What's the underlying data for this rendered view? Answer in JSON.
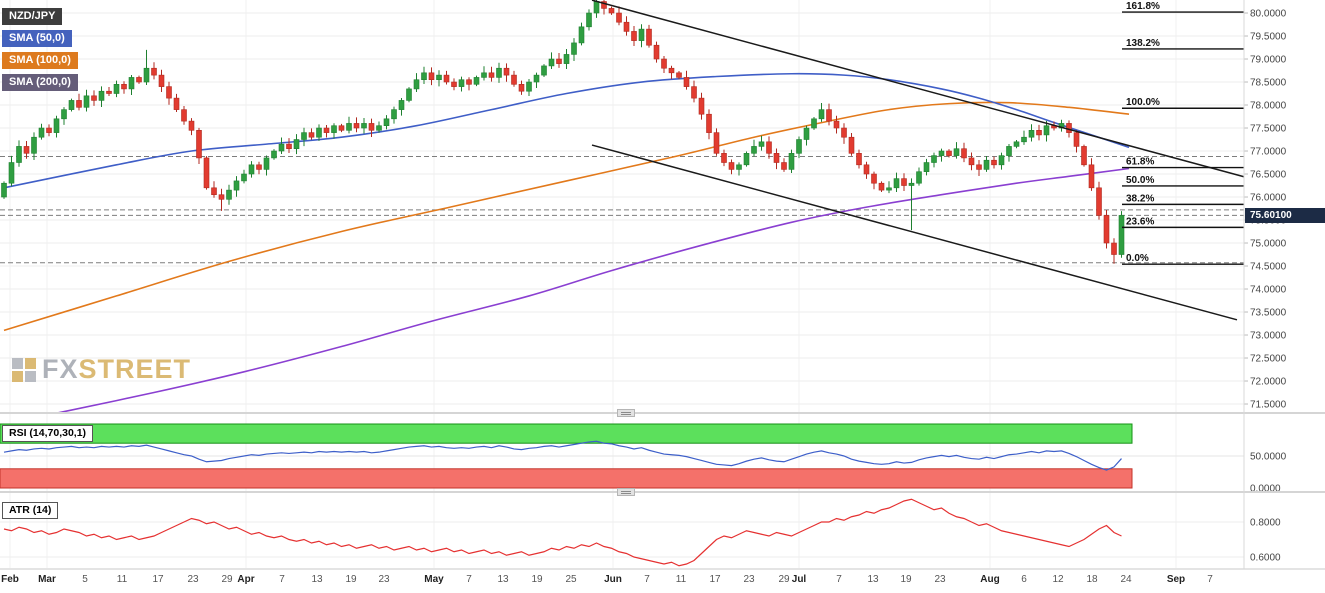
{
  "legend": {
    "symbol": "NZD/JPY",
    "sma50": "SMA (50,0)",
    "sma100": "SMA (100,0)",
    "sma200": "SMA (200,0)"
  },
  "watermark": {
    "fx": "FX",
    "street": "STREET"
  },
  "price_axis": {
    "labels": [
      "80.0000",
      "79.5000",
      "79.0000",
      "78.5000",
      "78.0000",
      "77.5000",
      "77.0000",
      "76.5000",
      "76.0000",
      "75.5000",
      "75.0000",
      "74.5000",
      "74.0000",
      "73.5000",
      "73.0000",
      "72.5000",
      "72.0000",
      "71.5000"
    ],
    "badge": "75.60100"
  },
  "colors": {
    "symbol_badge": "#3d3d3d",
    "sma50_badge": "#4462bd",
    "sma100_badge": "#dd7a1e",
    "sma200_badge": "#655d79",
    "sma50": "#3f5ec7",
    "sma100": "#e2791b",
    "sma200": "#8a3fd1",
    "candle_up": "#2f9e41",
    "candle_down": "#e23b30",
    "rsi_line": "#3d5fc9",
    "rsi_upper_band": "#5ce05c",
    "rsi_lower_band": "#f4716a",
    "atr_line": "#e53131",
    "last_price_bg": "#1c2b45"
  },
  "chart_data": {
    "type": "candlestick",
    "symbol": "NZD/JPY",
    "last_price": 75.601,
    "price_scale": {
      "min_label": 71.5,
      "max_label": 80.0,
      "step": 0.5
    },
    "candles": {
      "first_open": 76.0,
      "closes": [
        76.3,
        76.75,
        77.1,
        76.95,
        77.3,
        77.5,
        77.4,
        77.7,
        77.9,
        78.1,
        77.95,
        78.2,
        78.1,
        78.3,
        78.25,
        78.45,
        78.35,
        78.6,
        78.5,
        78.8,
        78.65,
        78.4,
        78.15,
        77.9,
        77.65,
        77.45,
        76.85,
        76.2,
        76.05,
        75.95,
        76.15,
        76.35,
        76.5,
        76.7,
        76.6,
        76.85,
        77.0,
        77.15,
        77.05,
        77.25,
        77.4,
        77.3,
        77.5,
        77.4,
        77.55,
        77.45,
        77.6,
        77.5,
        77.6,
        77.45,
        77.55,
        77.7,
        77.9,
        78.1,
        78.35,
        78.55,
        78.7,
        78.55,
        78.65,
        78.5,
        78.4,
        78.55,
        78.45,
        78.6,
        78.7,
        78.6,
        78.8,
        78.65,
        78.45,
        78.3,
        78.5,
        78.65,
        78.85,
        79.0,
        78.9,
        79.1,
        79.35,
        79.7,
        80.0,
        80.25,
        80.1,
        80.0,
        79.8,
        79.6,
        79.4,
        79.65,
        79.3,
        79.0,
        78.8,
        78.7,
        78.6,
        78.4,
        78.15,
        77.8,
        77.4,
        76.95,
        76.75,
        76.6,
        76.7,
        76.95,
        77.1,
        77.2,
        76.95,
        76.75,
        76.6,
        76.95,
        77.25,
        77.5,
        77.7,
        77.9,
        77.65,
        77.5,
        77.3,
        76.95,
        76.7,
        76.5,
        76.3,
        76.15,
        76.2,
        76.4,
        76.25,
        76.3,
        76.55,
        76.75,
        76.9,
        77.0,
        76.9,
        77.05,
        76.85,
        76.7,
        76.6,
        76.8,
        76.7,
        76.9,
        77.1,
        77.2,
        77.3,
        77.45,
        77.35,
        77.55,
        77.5,
        77.6,
        77.4,
        77.1,
        76.7,
        76.2,
        75.6,
        75.0,
        74.75,
        75.6
      ],
      "wick_overrides": {
        "19": {
          "h": 79.2
        },
        "29": {
          "l": 75.7
        },
        "79": {
          "h": 80.45
        },
        "121": {
          "l": 75.28
        },
        "148": {
          "l": 74.55
        },
        "149": {
          "l": 74.68
        }
      }
    },
    "overlays": {
      "sma50": {
        "name": "SMA (50,0)",
        "points": [
          [
            0,
            76.2
          ],
          [
            15,
            76.7
          ],
          [
            25,
            77.0
          ],
          [
            35,
            77.15
          ],
          [
            45,
            77.3
          ],
          [
            55,
            77.55
          ],
          [
            65,
            77.9
          ],
          [
            75,
            78.25
          ],
          [
            85,
            78.5
          ],
          [
            95,
            78.62
          ],
          [
            105,
            78.68
          ],
          [
            112,
            78.65
          ],
          [
            118,
            78.55
          ],
          [
            125,
            78.35
          ],
          [
            130,
            78.15
          ],
          [
            135,
            77.9
          ],
          [
            140,
            77.62
          ],
          [
            145,
            77.35
          ],
          [
            150,
            77.08
          ]
        ]
      },
      "sma100": {
        "name": "SMA (100,0)",
        "points": [
          [
            0,
            73.1
          ],
          [
            15,
            73.85
          ],
          [
            30,
            74.6
          ],
          [
            45,
            75.25
          ],
          [
            60,
            75.8
          ],
          [
            75,
            76.35
          ],
          [
            90,
            76.9
          ],
          [
            100,
            77.3
          ],
          [
            110,
            77.65
          ],
          [
            118,
            77.9
          ],
          [
            126,
            78.03
          ],
          [
            134,
            78.05
          ],
          [
            142,
            77.95
          ],
          [
            150,
            77.8
          ]
        ]
      },
      "sma200": {
        "name": "SMA (200,0)",
        "points": [
          [
            7,
            71.3
          ],
          [
            20,
            71.75
          ],
          [
            32,
            72.2
          ],
          [
            45,
            72.75
          ],
          [
            57,
            73.3
          ],
          [
            70,
            73.85
          ],
          [
            81,
            74.4
          ],
          [
            93,
            74.95
          ],
          [
            105,
            75.45
          ],
          [
            115,
            75.78
          ],
          [
            125,
            76.05
          ],
          [
            135,
            76.3
          ],
          [
            142,
            76.45
          ],
          [
            150,
            76.62
          ]
        ]
      }
    },
    "fib_levels": [
      {
        "label": "161.8%",
        "price": 80.02
      },
      {
        "label": "138.2%",
        "price": 79.22
      },
      {
        "label": "100.0%",
        "price": 77.93
      },
      {
        "label": "61.8%",
        "price": 76.64
      },
      {
        "label": "50.0%",
        "price": 76.24
      },
      {
        "label": "38.2%",
        "price": 75.84
      },
      {
        "label": "23.6%",
        "price": 75.34
      },
      {
        "label": "0.0%",
        "price": 74.54
      }
    ],
    "dashed_levels": [
      76.88,
      75.72,
      75.6,
      74.57
    ],
    "trendlines": [
      {
        "x1": 592,
        "price1": 80.28,
        "x2": 1244,
        "price2": 76.44
      },
      {
        "x1": 592,
        "price1": 77.13,
        "x2": 1237,
        "price2": 73.33
      }
    ],
    "rsi": {
      "label": "RSI (14,70,30,1)",
      "upper_band": [
        70,
        100
      ],
      "lower_band": [
        0,
        30
      ],
      "axis_labels": [
        {
          "label": "50.0000",
          "value": 50
        },
        {
          "label": "0.0000",
          "value": 0
        }
      ],
      "values": [
        56,
        58,
        60,
        59,
        61,
        62,
        61,
        63,
        64,
        65,
        63,
        64,
        63,
        65,
        64,
        65,
        64,
        66,
        65,
        67,
        64,
        61,
        58,
        55,
        52,
        50,
        45,
        41,
        42,
        43,
        46,
        48,
        50,
        52,
        51,
        53,
        54,
        55,
        54,
        55,
        56,
        55,
        57,
        56,
        57,
        56,
        57,
        56,
        57,
        55,
        56,
        58,
        60,
        62,
        64,
        65,
        66,
        64,
        65,
        63,
        62,
        63,
        62,
        64,
        65,
        63,
        66,
        64,
        61,
        60,
        62,
        63,
        65,
        66,
        64,
        66,
        68,
        70,
        72,
        73,
        70,
        69,
        66,
        64,
        61,
        63,
        59,
        56,
        53,
        52,
        51,
        49,
        46,
        43,
        40,
        37,
        36,
        35,
        38,
        42,
        45,
        47,
        44,
        42,
        41,
        45,
        49,
        53,
        56,
        58,
        55,
        53,
        50,
        45,
        42,
        40,
        38,
        37,
        38,
        41,
        39,
        40,
        44,
        47,
        49,
        51,
        49,
        51,
        48,
        46,
        45,
        48,
        46,
        49,
        52,
        53,
        55,
        57,
        55,
        58,
        57,
        58,
        54,
        49,
        43,
        37,
        32,
        28,
        33,
        46
      ]
    },
    "atr": {
      "label": "ATR (14)",
      "axis_labels": [
        {
          "label": "0.8000",
          "value": 0.8
        },
        {
          "label": "0.6000",
          "value": 0.6
        }
      ],
      "values": [
        0.76,
        0.75,
        0.77,
        0.76,
        0.74,
        0.75,
        0.73,
        0.74,
        0.76,
        0.75,
        0.74,
        0.72,
        0.73,
        0.71,
        0.72,
        0.7,
        0.71,
        0.72,
        0.7,
        0.71,
        0.72,
        0.74,
        0.76,
        0.78,
        0.8,
        0.82,
        0.81,
        0.79,
        0.8,
        0.78,
        0.76,
        0.77,
        0.75,
        0.73,
        0.74,
        0.72,
        0.71,
        0.72,
        0.7,
        0.69,
        0.7,
        0.68,
        0.69,
        0.67,
        0.68,
        0.66,
        0.67,
        0.65,
        0.66,
        0.67,
        0.65,
        0.66,
        0.64,
        0.65,
        0.66,
        0.64,
        0.65,
        0.63,
        0.64,
        0.65,
        0.63,
        0.64,
        0.62,
        0.63,
        0.64,
        0.62,
        0.63,
        0.61,
        0.62,
        0.63,
        0.61,
        0.62,
        0.63,
        0.65,
        0.64,
        0.66,
        0.65,
        0.67,
        0.66,
        0.68,
        0.66,
        0.65,
        0.63,
        0.62,
        0.6,
        0.59,
        0.58,
        0.57,
        0.56,
        0.57,
        0.55,
        0.56,
        0.58,
        0.62,
        0.66,
        0.7,
        0.72,
        0.71,
        0.73,
        0.75,
        0.74,
        0.73,
        0.72,
        0.74,
        0.73,
        0.72,
        0.74,
        0.76,
        0.78,
        0.8,
        0.8,
        0.82,
        0.81,
        0.83,
        0.84,
        0.86,
        0.85,
        0.87,
        0.88,
        0.9,
        0.92,
        0.93,
        0.91,
        0.89,
        0.87,
        0.88,
        0.85,
        0.83,
        0.82,
        0.8,
        0.78,
        0.79,
        0.77,
        0.75,
        0.74,
        0.73,
        0.72,
        0.71,
        0.7,
        0.69,
        0.68,
        0.67,
        0.66,
        0.68,
        0.7,
        0.73,
        0.76,
        0.78,
        0.74,
        0.72
      ]
    },
    "x_ticks": [
      {
        "label": "Feb",
        "x": 10
      },
      {
        "label": "Mar",
        "x": 47
      },
      {
        "label": "5",
        "x": 85
      },
      {
        "label": "11",
        "x": 122
      },
      {
        "label": "17",
        "x": 158
      },
      {
        "label": "23",
        "x": 193
      },
      {
        "label": "29",
        "x": 227
      },
      {
        "label": "Apr",
        "x": 246
      },
      {
        "label": "7",
        "x": 282
      },
      {
        "label": "13",
        "x": 317
      },
      {
        "label": "19",
        "x": 351
      },
      {
        "label": "23",
        "x": 384
      },
      {
        "label": "May",
        "x": 434
      },
      {
        "label": "7",
        "x": 469
      },
      {
        "label": "13",
        "x": 503
      },
      {
        "label": "19",
        "x": 537
      },
      {
        "label": "25",
        "x": 571
      },
      {
        "label": "Jun",
        "x": 613
      },
      {
        "label": "7",
        "x": 647
      },
      {
        "label": "11",
        "x": 681
      },
      {
        "label": "17",
        "x": 715
      },
      {
        "label": "23",
        "x": 749
      },
      {
        "label": "29",
        "x": 784
      },
      {
        "label": "Jul",
        "x": 799
      },
      {
        "label": "7",
        "x": 839
      },
      {
        "label": "13",
        "x": 873
      },
      {
        "label": "19",
        "x": 906
      },
      {
        "label": "23",
        "x": 940
      },
      {
        "label": "Aug",
        "x": 990
      },
      {
        "label": "6",
        "x": 1024
      },
      {
        "label": "12",
        "x": 1058
      },
      {
        "label": "18",
        "x": 1092
      },
      {
        "label": "24",
        "x": 1126
      },
      {
        "label": "Sep",
        "x": 1176
      },
      {
        "label": "7",
        "x": 1210
      }
    ]
  }
}
